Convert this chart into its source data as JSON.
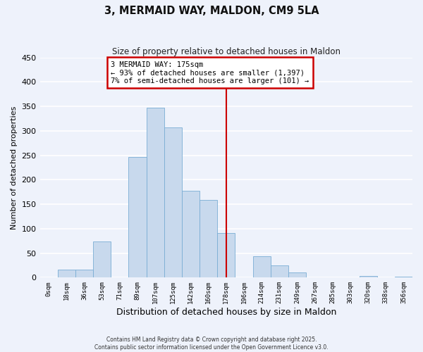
{
  "title": "3, MERMAID WAY, MALDON, CM9 5LA",
  "subtitle": "Size of property relative to detached houses in Maldon",
  "xlabel": "Distribution of detached houses by size in Maldon",
  "ylabel": "Number of detached properties",
  "bar_color": "#c8d9ed",
  "bar_edge_color": "#7aadd4",
  "background_color": "#eef2fb",
  "grid_color": "#ffffff",
  "bin_labels": [
    "0sqm",
    "18sqm",
    "36sqm",
    "53sqm",
    "71sqm",
    "89sqm",
    "107sqm",
    "125sqm",
    "142sqm",
    "160sqm",
    "178sqm",
    "196sqm",
    "214sqm",
    "231sqm",
    "249sqm",
    "267sqm",
    "285sqm",
    "303sqm",
    "320sqm",
    "338sqm",
    "356sqm"
  ],
  "bar_heights": [
    0,
    17,
    17,
    74,
    0,
    246,
    348,
    307,
    177,
    159,
    91,
    0,
    44,
    25,
    10,
    0,
    0,
    0,
    3,
    0,
    2
  ],
  "vline_x": 10,
  "vline_color": "#cc0000",
  "annotation_text": "3 MERMAID WAY: 175sqm\n← 93% of detached houses are smaller (1,397)\n7% of semi-detached houses are larger (101) →",
  "annotation_box_color": "#ffffff",
  "annotation_box_edge": "#cc0000",
  "ylim": [
    0,
    450
  ],
  "yticks": [
    0,
    50,
    100,
    150,
    200,
    250,
    300,
    350,
    400,
    450
  ],
  "footnote1": "Contains HM Land Registry data © Crown copyright and database right 2025.",
  "footnote2": "Contains public sector information licensed under the Open Government Licence v3.0."
}
